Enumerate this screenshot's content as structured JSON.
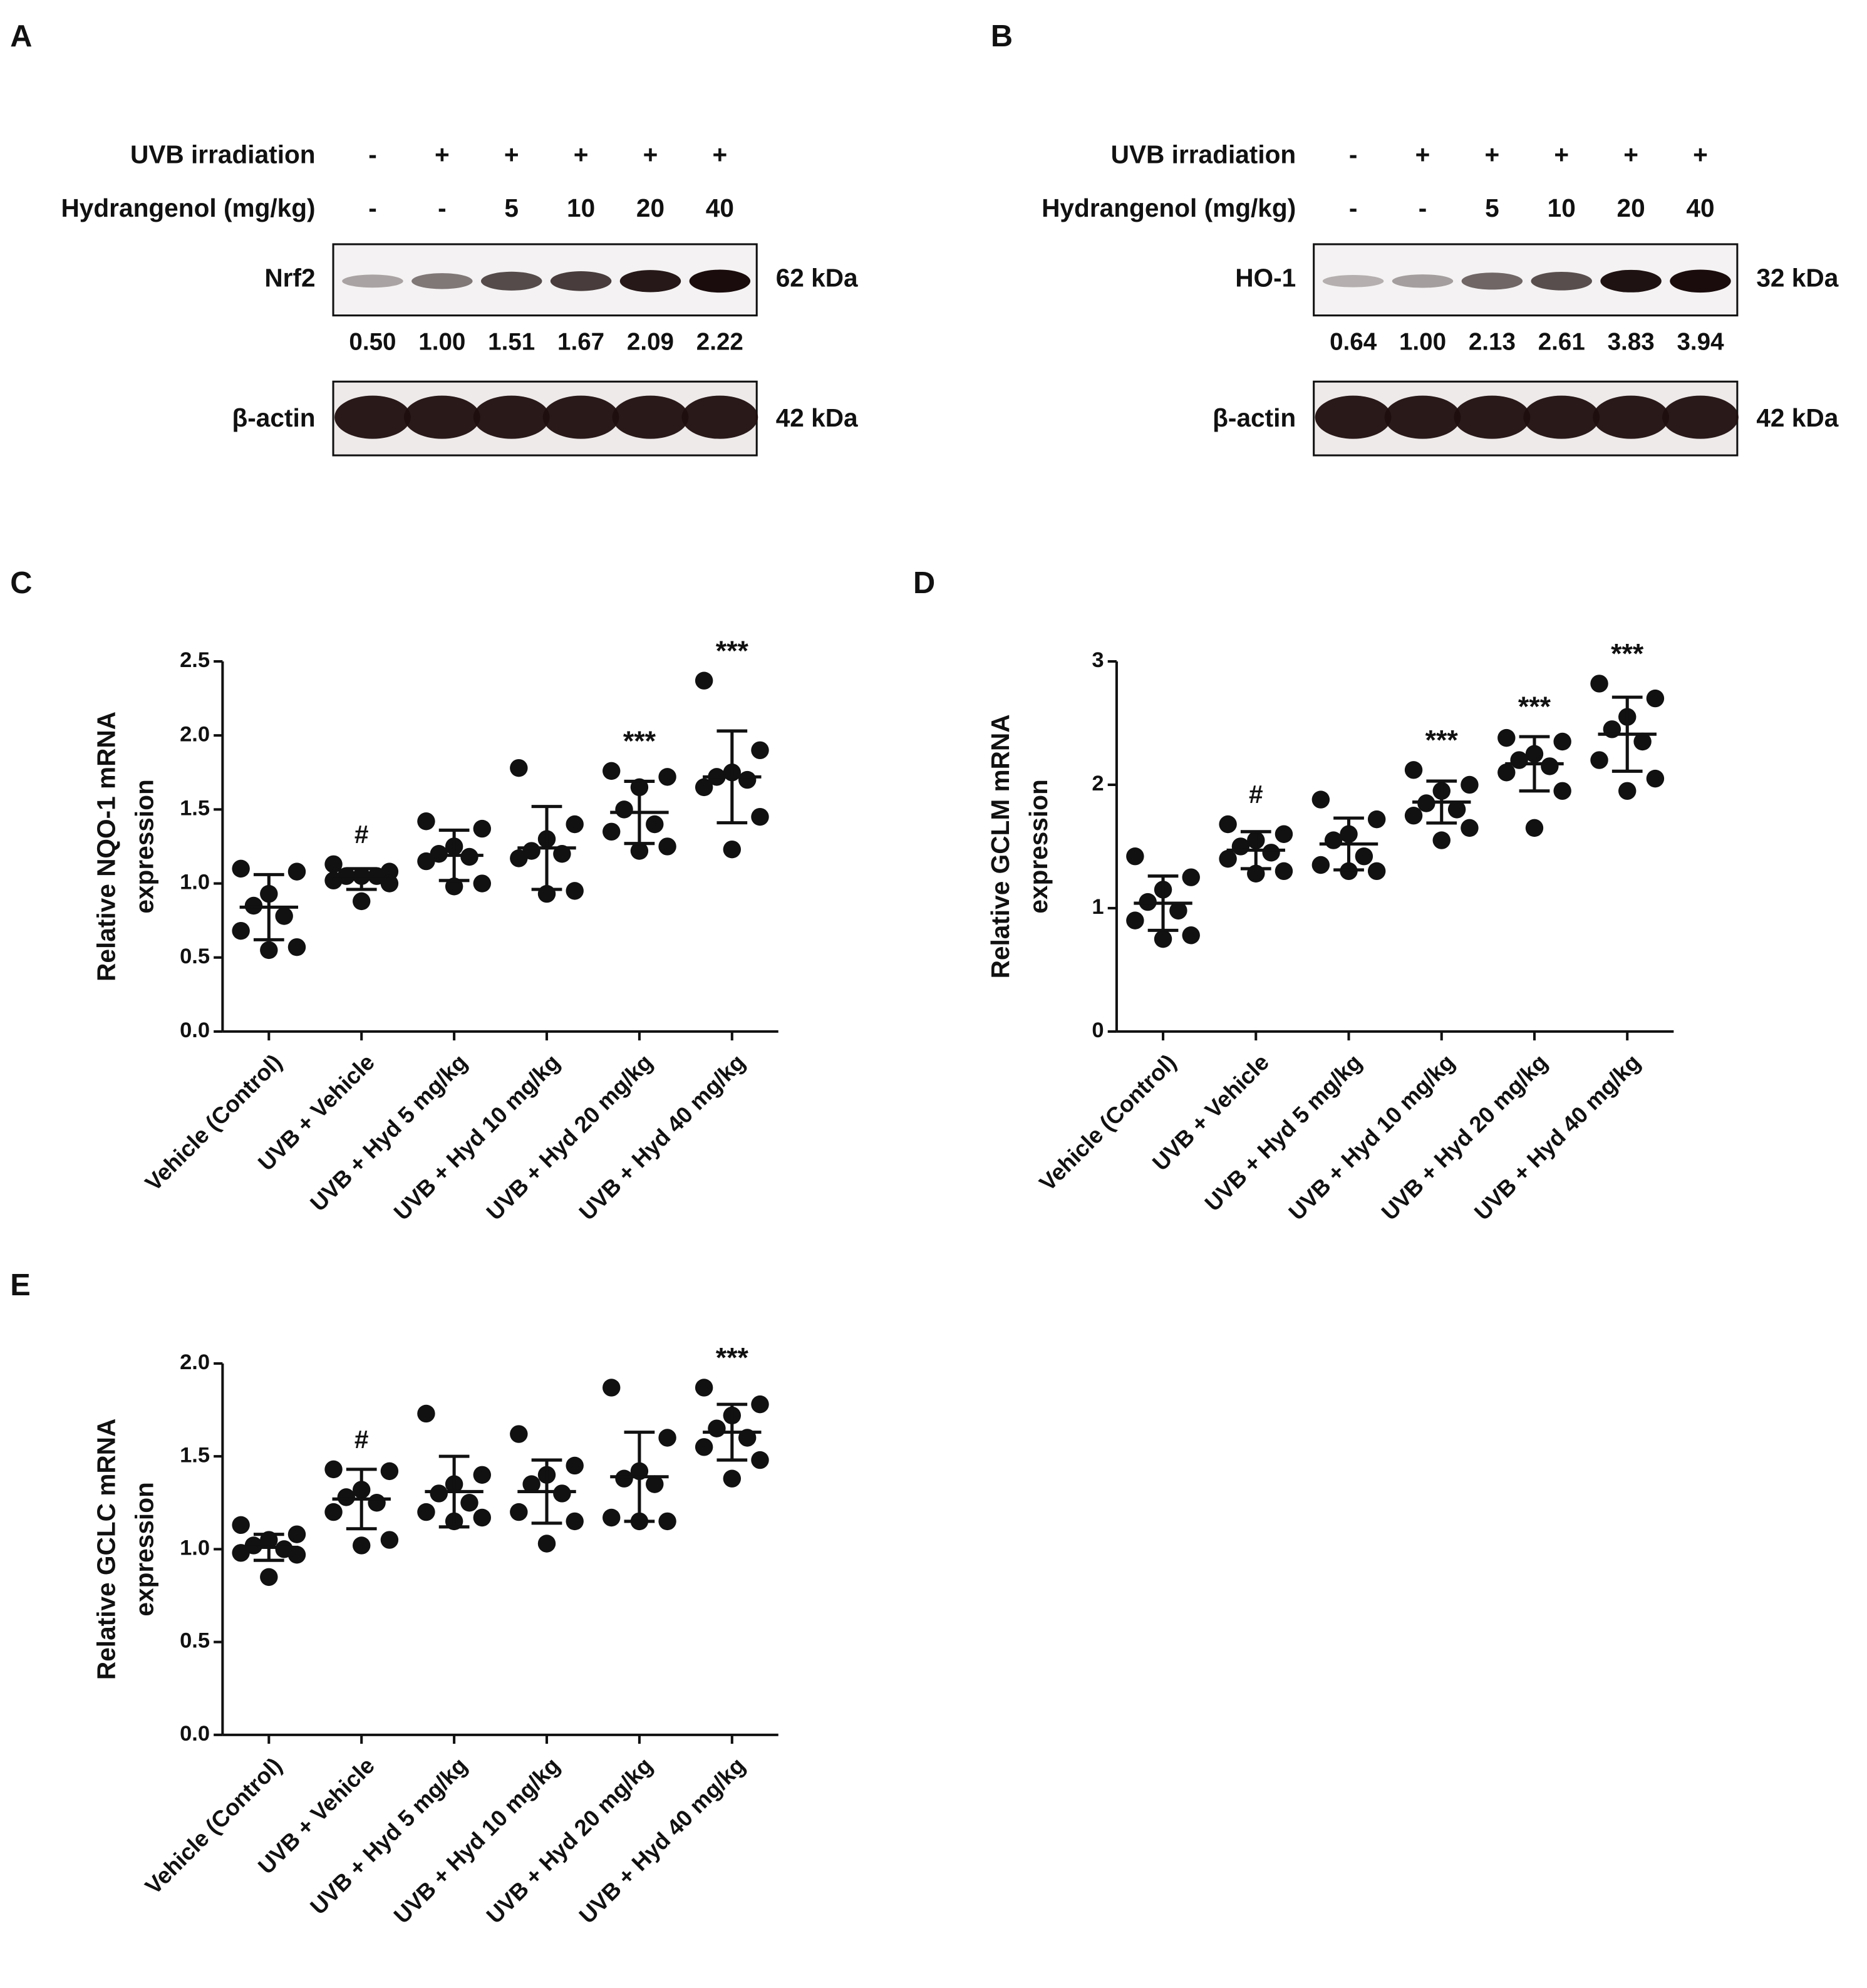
{
  "blots": [
    {
      "panel": "A",
      "conditions": [
        {
          "name": "UVB irradiation",
          "values": [
            "-",
            "+",
            "+",
            "+",
            "+",
            "+"
          ]
        },
        {
          "name": "Hydrangenol (mg/kg)",
          "values": [
            "-",
            "-",
            "5",
            "10",
            "20",
            "40"
          ]
        }
      ],
      "target": {
        "name": "Nrf2",
        "size": "62 kDa"
      },
      "quantification": [
        "0.50",
        "1.00",
        "1.51",
        "1.67",
        "2.09",
        "2.22"
      ],
      "loading": {
        "name": "β-actin",
        "size": "42 kDa"
      }
    },
    {
      "panel": "B",
      "conditions": [
        {
          "name": "UVB irradiation",
          "values": [
            "-",
            "+",
            "+",
            "+",
            "+",
            "+"
          ]
        },
        {
          "name": "Hydrangenol (mg/kg)",
          "values": [
            "-",
            "-",
            "5",
            "10",
            "20",
            "40"
          ]
        }
      ],
      "target": {
        "name": "HO-1",
        "size": "32 kDa"
      },
      "quantification": [
        "0.64",
        "1.00",
        "2.13",
        "2.61",
        "3.83",
        "3.94"
      ],
      "loading": {
        "name": "β-actin",
        "size": "42 kDa"
      }
    }
  ],
  "chart_data": [
    {
      "type": "dotplot",
      "panel": "C",
      "ylabel": [
        "Relative NQO-1 mRNA",
        "expression"
      ],
      "categories": [
        "Vehicle (Control)",
        "UVB + Vehicle",
        "UVB + Hyd 5 mg/kg",
        "UVB + Hyd 10 mg/kg",
        "UVB + Hyd 20 mg/kg",
        "UVB + Hyd 40 mg/kg"
      ],
      "points": [
        [
          1.1,
          1.08,
          0.93,
          0.85,
          0.78,
          0.68,
          0.57,
          0.55
        ],
        [
          1.13,
          1.08,
          1.05,
          1.05,
          1.05,
          1.02,
          1.0,
          0.88
        ],
        [
          1.42,
          1.37,
          1.25,
          1.2,
          1.18,
          1.15,
          1.0,
          0.98
        ],
        [
          1.78,
          1.4,
          1.3,
          1.22,
          1.2,
          1.17,
          0.95,
          0.93
        ],
        [
          1.76,
          1.72,
          1.65,
          1.5,
          1.4,
          1.35,
          1.25,
          1.22
        ],
        [
          2.37,
          1.9,
          1.75,
          1.72,
          1.7,
          1.65,
          1.45,
          1.23
        ]
      ],
      "means": [
        0.84,
        1.03,
        1.19,
        1.24,
        1.48,
        1.72
      ],
      "errors": [
        0.22,
        0.07,
        0.17,
        0.28,
        0.21,
        0.31
      ],
      "annotations": [
        null,
        "#",
        null,
        null,
        "***",
        "***"
      ],
      "color": "#111111",
      "ylim": [
        0,
        2.5
      ],
      "yticks": [
        {
          "value": 0,
          "label": "0.0"
        },
        0.5,
        {
          "value": 1,
          "label": "1.0"
        },
        1.5,
        {
          "value": 2,
          "label": "2.0"
        },
        2.5
      ]
    },
    {
      "type": "dotplot",
      "panel": "D",
      "ylabel": [
        "Relative GCLM mRNA",
        "expression"
      ],
      "categories": [
        "Vehicle (Control)",
        "UVB + Vehicle",
        "UVB + Hyd 5 mg/kg",
        "UVB + Hyd 10 mg/kg",
        "UVB + Hyd 20 mg/kg",
        "UVB + Hyd 40 mg/kg"
      ],
      "points": [
        [
          1.42,
          1.25,
          1.15,
          1.05,
          0.98,
          0.9,
          0.78,
          0.75
        ],
        [
          1.68,
          1.6,
          1.55,
          1.5,
          1.45,
          1.4,
          1.3,
          1.28
        ],
        [
          1.88,
          1.72,
          1.6,
          1.55,
          1.42,
          1.35,
          1.3,
          1.3
        ],
        [
          2.12,
          2.0,
          1.95,
          1.85,
          1.8,
          1.75,
          1.65,
          1.55
        ],
        [
          2.38,
          2.35,
          2.25,
          2.2,
          2.15,
          2.1,
          1.95,
          1.65
        ],
        [
          2.82,
          2.7,
          2.55,
          2.45,
          2.35,
          2.2,
          2.05,
          1.95
        ]
      ],
      "means": [
        1.04,
        1.47,
        1.52,
        1.86,
        2.17,
        2.41
      ],
      "errors": [
        0.22,
        0.15,
        0.21,
        0.17,
        0.22,
        0.3
      ],
      "annotations": [
        null,
        "#",
        null,
        "***",
        "***",
        "***"
      ],
      "color": "#111111",
      "ylim": [
        0,
        3
      ],
      "yticks": [
        0,
        1,
        2,
        3
      ]
    },
    {
      "type": "dotplot",
      "panel": "E",
      "ylabel": [
        "Relative GCLC mRNA",
        "expression"
      ],
      "categories": [
        "Vehicle (Control)",
        "UVB + Vehicle",
        "UVB + Hyd 5 mg/kg",
        "UVB + Hyd 10 mg/kg",
        "UVB + Hyd 20 mg/kg",
        "UVB + Hyd 40 mg/kg"
      ],
      "points": [
        [
          1.13,
          1.08,
          1.05,
          1.02,
          1.0,
          0.98,
          0.97,
          0.85
        ],
        [
          1.43,
          1.42,
          1.32,
          1.28,
          1.25,
          1.2,
          1.05,
          1.02
        ],
        [
          1.73,
          1.4,
          1.35,
          1.3,
          1.25,
          1.2,
          1.17,
          1.15
        ],
        [
          1.62,
          1.45,
          1.4,
          1.35,
          1.3,
          1.2,
          1.15,
          1.03
        ],
        [
          1.87,
          1.6,
          1.42,
          1.38,
          1.35,
          1.17,
          1.15,
          1.15
        ],
        [
          1.87,
          1.78,
          1.72,
          1.65,
          1.6,
          1.55,
          1.48,
          1.38
        ]
      ],
      "means": [
        1.01,
        1.27,
        1.31,
        1.31,
        1.39,
        1.63
      ],
      "errors": [
        0.07,
        0.16,
        0.19,
        0.17,
        0.24,
        0.15
      ],
      "annotations": [
        null,
        "#",
        null,
        null,
        null,
        "***"
      ],
      "color": "#111111",
      "ylim": [
        0,
        2
      ],
      "yticks": [
        {
          "value": 0,
          "label": "0.0"
        },
        0.5,
        {
          "value": 1,
          "label": "1.0"
        },
        1.5,
        {
          "value": 2,
          "label": "2.0"
        }
      ]
    }
  ]
}
